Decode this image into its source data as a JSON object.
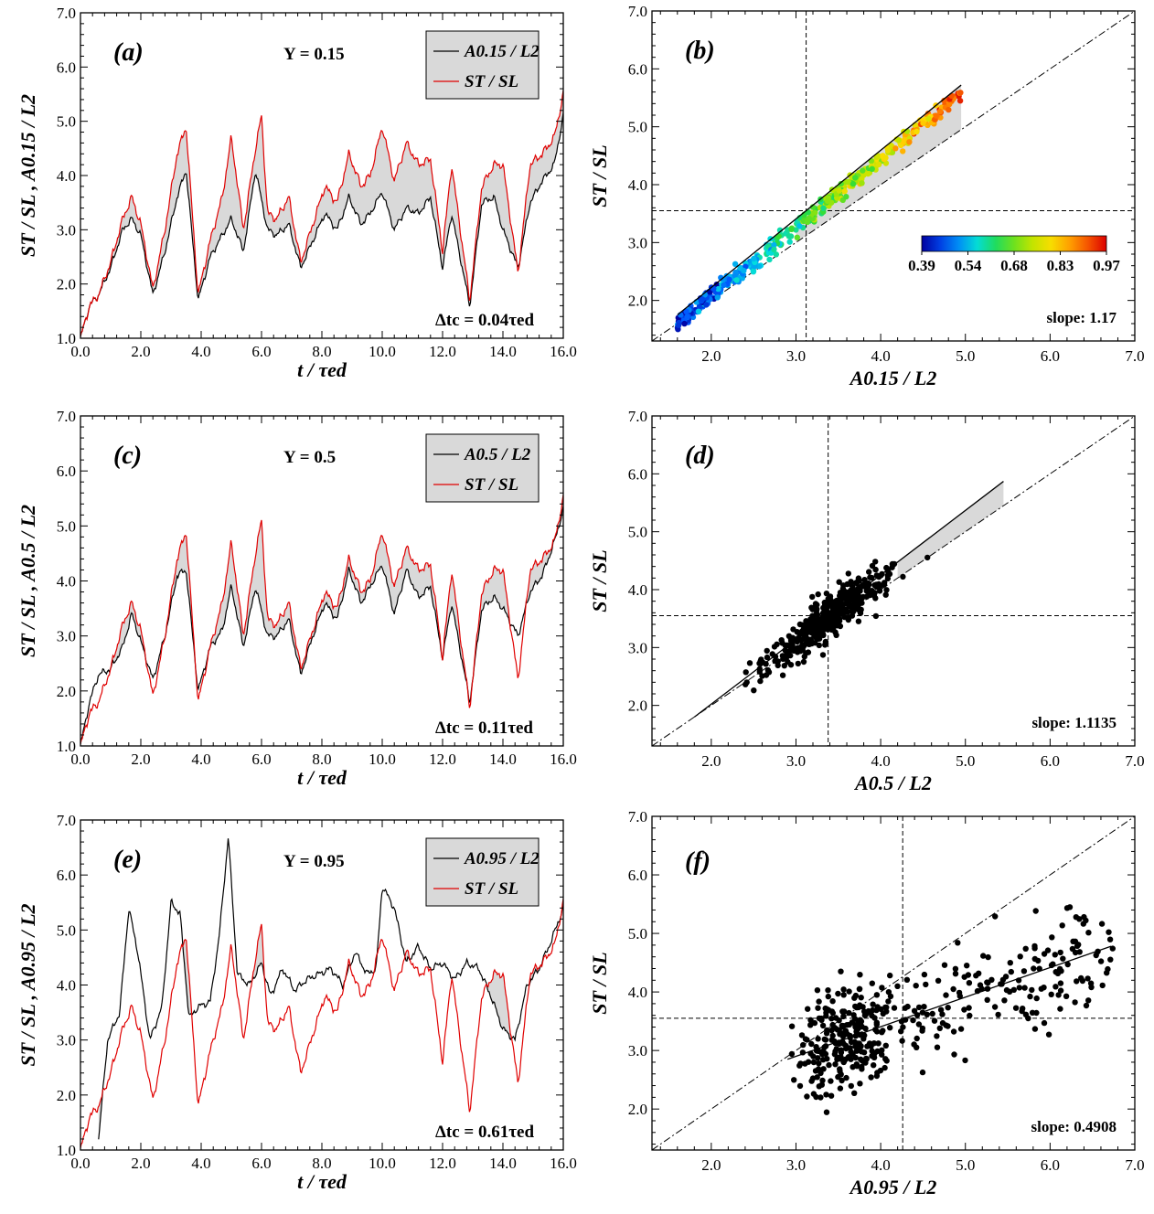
{
  "chart_data": [
    {
      "panel": "(a)",
      "type": "line",
      "xlabel": "t / τed",
      "ylabel": "ST / SL , A0.15 / L2",
      "xlim": [
        0,
        16
      ],
      "ylim": [
        1,
        7
      ],
      "xticks": [
        "0.0",
        "2.0",
        "4.0",
        "6.0",
        "8.0",
        "10.0",
        "12.0",
        "14.0",
        "16.0"
      ],
      "yticks": [
        "1.0",
        "2.0",
        "3.0",
        "4.0",
        "5.0",
        "6.0",
        "7.0"
      ],
      "annotation": "Y = 0.15",
      "note": "Δtc = 0.04τed",
      "legend": [
        "A0.15 / L2",
        "ST / SL"
      ],
      "legend_position": "top-right",
      "series": [
        {
          "name": "A0.15 / L2",
          "color": "#000000",
          "x": [
            0,
            0.3,
            0.6,
            1.0,
            1.4,
            1.7,
            2.0,
            2.4,
            2.8,
            3.2,
            3.5,
            3.9,
            4.3,
            4.7,
            5.0,
            5.4,
            5.8,
            6.2,
            6.5,
            6.9,
            7.3,
            7.7,
            8.1,
            8.5,
            8.9,
            9.3,
            9.6,
            10.0,
            10.4,
            10.8,
            11.2,
            11.6,
            12.0,
            12.3,
            12.9,
            13.3,
            13.7,
            14.0,
            14.5,
            14.9,
            15.3,
            15.7,
            16.0
          ],
          "y": [
            1.0,
            1.6,
            1.8,
            2.3,
            3.0,
            3.2,
            2.9,
            1.8,
            2.6,
            3.6,
            4.1,
            1.7,
            2.5,
            2.9,
            3.2,
            2.6,
            4.1,
            3.0,
            2.9,
            3.1,
            2.3,
            2.8,
            3.3,
            3.0,
            3.6,
            3.1,
            3.3,
            3.7,
            3.0,
            3.4,
            3.3,
            3.6,
            2.3,
            3.3,
            1.6,
            3.5,
            3.6,
            3.0,
            2.3,
            3.5,
            3.9,
            4.2,
            5.1
          ]
        },
        {
          "name": "ST / SL",
          "color": "#e00000",
          "x": [
            0,
            0.3,
            0.6,
            1.0,
            1.4,
            1.7,
            2.0,
            2.4,
            2.8,
            3.2,
            3.5,
            3.9,
            4.3,
            4.7,
            5.0,
            5.4,
            5.8,
            6.0,
            6.2,
            6.5,
            6.9,
            7.3,
            7.7,
            8.1,
            8.5,
            8.9,
            9.3,
            9.6,
            10.0,
            10.4,
            10.8,
            11.2,
            11.6,
            12.0,
            12.3,
            12.9,
            13.3,
            13.7,
            14.0,
            14.5,
            14.9,
            15.3,
            15.7,
            16.0
          ],
          "y": [
            1.0,
            1.6,
            1.8,
            2.4,
            3.2,
            3.6,
            3.1,
            1.9,
            3.0,
            4.4,
            4.9,
            1.8,
            2.8,
            3.6,
            4.7,
            3.0,
            4.5,
            5.1,
            3.3,
            3.2,
            3.6,
            2.4,
            3.1,
            3.8,
            3.5,
            4.4,
            3.8,
            4.0,
            4.9,
            3.9,
            4.6,
            4.2,
            4.3,
            2.6,
            4.2,
            1.7,
            3.8,
            4.2,
            4.2,
            2.2,
            4.2,
            4.4,
            4.7,
            5.5
          ]
        }
      ]
    },
    {
      "panel": "(b)",
      "type": "scatter",
      "xlabel": "A0.15 / L2",
      "ylabel": "ST / SL",
      "xlim": [
        1.3,
        7.0
      ],
      "ylim": [
        1.3,
        7.0
      ],
      "xticks": [
        "2.0",
        "3.0",
        "4.0",
        "5.0",
        "6.0",
        "7.0"
      ],
      "yticks": [
        "2.0",
        "3.0",
        "4.0",
        "5.0",
        "6.0",
        "7.0"
      ],
      "mean_x": 3.12,
      "mean_y": 3.55,
      "fit": [
        [
          1.6,
          1.75
        ],
        [
          4.95,
          5.72
        ]
      ],
      "colorbar_ticks": [
        "0.39",
        "0.54",
        "0.68",
        "0.83",
        "0.97"
      ],
      "slope_label": "slope: 1.17"
    },
    {
      "panel": "(c)",
      "type": "line",
      "xlabel": "t / τed",
      "ylabel": "ST / SL , A0.5 / L2",
      "xlim": [
        0,
        16
      ],
      "ylim": [
        1,
        7
      ],
      "xticks": [
        "0.0",
        "2.0",
        "4.0",
        "6.0",
        "8.0",
        "10.0",
        "12.0",
        "14.0",
        "16.0"
      ],
      "yticks": [
        "1.0",
        "2.0",
        "3.0",
        "4.0",
        "5.0",
        "6.0",
        "7.0"
      ],
      "annotation": "Y = 0.5",
      "note": "Δtc = 0.11τed",
      "legend": [
        "A0.5 / L2",
        "ST / SL"
      ],
      "legend_position": "top-right",
      "series": [
        {
          "name": "A0.5 / L2",
          "color": "#000000",
          "x": [
            0,
            0.3,
            0.6,
            1.0,
            1.4,
            1.7,
            2.0,
            2.4,
            2.8,
            3.2,
            3.5,
            3.9,
            4.3,
            4.7,
            5.0,
            5.4,
            5.8,
            6.2,
            6.5,
            6.9,
            7.3,
            7.7,
            8.1,
            8.5,
            8.9,
            9.3,
            9.6,
            10.0,
            10.4,
            10.8,
            11.2,
            11.6,
            12.0,
            12.3,
            12.9,
            13.3,
            13.7,
            14.0,
            14.5,
            14.9,
            15.3,
            15.7,
            16.0
          ],
          "y": [
            1.0,
            1.8,
            2.3,
            2.4,
            2.8,
            3.4,
            2.9,
            2.2,
            3.0,
            4.1,
            4.2,
            2.0,
            2.8,
            3.1,
            3.9,
            2.8,
            3.9,
            3.0,
            3.0,
            3.3,
            2.3,
            3.0,
            3.6,
            3.3,
            4.2,
            3.6,
            3.9,
            4.3,
            3.4,
            4.2,
            3.7,
            3.9,
            2.6,
            3.6,
            1.8,
            3.5,
            3.7,
            3.5,
            3.0,
            3.8,
            4.1,
            4.7,
            5.3
          ]
        },
        {
          "name": "ST / SL",
          "color": "#e00000",
          "x": [
            0,
            0.3,
            0.6,
            1.0,
            1.4,
            1.7,
            2.0,
            2.4,
            2.8,
            3.2,
            3.5,
            3.9,
            4.3,
            4.7,
            5.0,
            5.4,
            5.8,
            6.0,
            6.2,
            6.5,
            6.9,
            7.3,
            7.7,
            8.1,
            8.5,
            8.9,
            9.3,
            9.6,
            10.0,
            10.4,
            10.8,
            11.2,
            11.6,
            12.0,
            12.3,
            12.9,
            13.3,
            13.7,
            14.0,
            14.5,
            14.9,
            15.3,
            15.7,
            16.0
          ],
          "y": [
            1.0,
            1.6,
            1.8,
            2.4,
            3.2,
            3.6,
            3.1,
            1.9,
            3.0,
            4.4,
            4.9,
            1.8,
            2.8,
            3.6,
            4.7,
            3.0,
            4.5,
            5.1,
            3.3,
            3.2,
            3.6,
            2.4,
            3.1,
            3.8,
            3.5,
            4.4,
            3.8,
            4.0,
            4.9,
            3.9,
            4.6,
            4.2,
            4.3,
            2.6,
            4.2,
            1.7,
            3.8,
            4.2,
            4.2,
            2.2,
            4.2,
            4.4,
            4.7,
            5.5
          ]
        }
      ]
    },
    {
      "panel": "(d)",
      "type": "scatter",
      "xlabel": "A0.5 / L2",
      "ylabel": "ST / SL",
      "xlim": [
        1.3,
        7.0
      ],
      "ylim": [
        1.3,
        7.0
      ],
      "xticks": [
        "2.0",
        "3.0",
        "4.0",
        "5.0",
        "6.0",
        "7.0"
      ],
      "yticks": [
        "2.0",
        "3.0",
        "4.0",
        "5.0",
        "6.0",
        "7.0"
      ],
      "mean_x": 3.38,
      "mean_y": 3.55,
      "fit": [
        [
          1.8,
          1.8
        ],
        [
          5.45,
          5.87
        ]
      ],
      "slope_label": "slope: 1.1135"
    },
    {
      "panel": "(e)",
      "type": "line",
      "xlabel": "t / τed",
      "ylabel": "ST / SL , A0.95 / L2",
      "xlim": [
        0,
        16
      ],
      "ylim": [
        1,
        7
      ],
      "xticks": [
        "0.0",
        "2.0",
        "4.0",
        "6.0",
        "8.0",
        "10.0",
        "12.0",
        "14.0",
        "16.0"
      ],
      "yticks": [
        "1.0",
        "2.0",
        "3.0",
        "4.0",
        "5.0",
        "6.0",
        "7.0"
      ],
      "annotation": "Y = 0.95",
      "note": "Δtc = 0.61τed",
      "legend": [
        "A0.95 / L2",
        "ST / SL"
      ],
      "legend_position": "top-right",
      "series": [
        {
          "name": "A0.95 / L2",
          "color": "#000000",
          "x": [
            0.6,
            0.9,
            1.3,
            1.6,
            1.9,
            2.3,
            2.7,
            3.0,
            3.3,
            3.6,
            3.9,
            4.3,
            4.6,
            4.9,
            5.2,
            5.6,
            6.0,
            6.3,
            6.7,
            7.1,
            7.5,
            7.9,
            8.3,
            8.7,
            9.1,
            9.5,
            9.8,
            10.0,
            10.4,
            10.8,
            11.2,
            11.6,
            12.0,
            12.4,
            12.8,
            13.2,
            13.6,
            14.0,
            14.4,
            14.8,
            15.2,
            15.6,
            16.0
          ],
          "y": [
            1.2,
            3.0,
            3.5,
            5.4,
            4.6,
            3.0,
            3.6,
            5.5,
            5.3,
            3.4,
            3.6,
            3.7,
            4.9,
            6.7,
            4.2,
            4.0,
            4.4,
            3.8,
            4.3,
            3.9,
            4.1,
            4.2,
            4.3,
            4.0,
            4.6,
            4.2,
            4.3,
            5.8,
            5.4,
            4.4,
            4.7,
            4.3,
            4.4,
            4.1,
            4.4,
            4.3,
            3.8,
            3.2,
            3.0,
            4.0,
            4.3,
            4.8,
            5.4
          ]
        },
        {
          "name": "ST / SL",
          "color": "#e00000",
          "x": [
            0,
            0.3,
            0.6,
            1.0,
            1.4,
            1.7,
            2.0,
            2.4,
            2.8,
            3.2,
            3.5,
            3.9,
            4.3,
            4.7,
            5.0,
            5.4,
            5.8,
            6.0,
            6.2,
            6.5,
            6.9,
            7.3,
            7.7,
            8.1,
            8.5,
            8.9,
            9.3,
            9.6,
            10.0,
            10.4,
            10.8,
            11.2,
            11.6,
            12.0,
            12.3,
            12.9,
            13.3,
            13.7,
            14.0,
            14.5,
            14.9,
            15.3,
            15.7,
            16.0
          ],
          "y": [
            1.0,
            1.6,
            1.8,
            2.4,
            3.2,
            3.6,
            3.1,
            1.9,
            3.0,
            4.4,
            4.9,
            1.8,
            2.8,
            3.6,
            4.7,
            3.0,
            4.5,
            5.1,
            3.3,
            3.2,
            3.6,
            2.4,
            3.1,
            3.8,
            3.5,
            4.4,
            3.8,
            4.0,
            4.9,
            3.9,
            4.6,
            4.2,
            4.3,
            2.6,
            4.2,
            1.7,
            3.8,
            4.2,
            4.2,
            2.2,
            4.2,
            4.4,
            4.7,
            5.5
          ]
        }
      ]
    },
    {
      "panel": "(f)",
      "type": "scatter",
      "xlabel": "A0.95 / L2",
      "ylabel": "ST / SL",
      "xlim": [
        1.3,
        7.0
      ],
      "ylim": [
        1.3,
        7.0
      ],
      "xticks": [
        "2.0",
        "3.0",
        "4.0",
        "5.0",
        "6.0",
        "7.0"
      ],
      "yticks": [
        "2.0",
        "3.0",
        "4.0",
        "5.0",
        "6.0",
        "7.0"
      ],
      "mean_x": 4.26,
      "mean_y": 3.55,
      "fit": [
        [
          2.9,
          2.85
        ],
        [
          6.72,
          4.78
        ]
      ],
      "slope_label": "slope: 0.4908"
    }
  ]
}
